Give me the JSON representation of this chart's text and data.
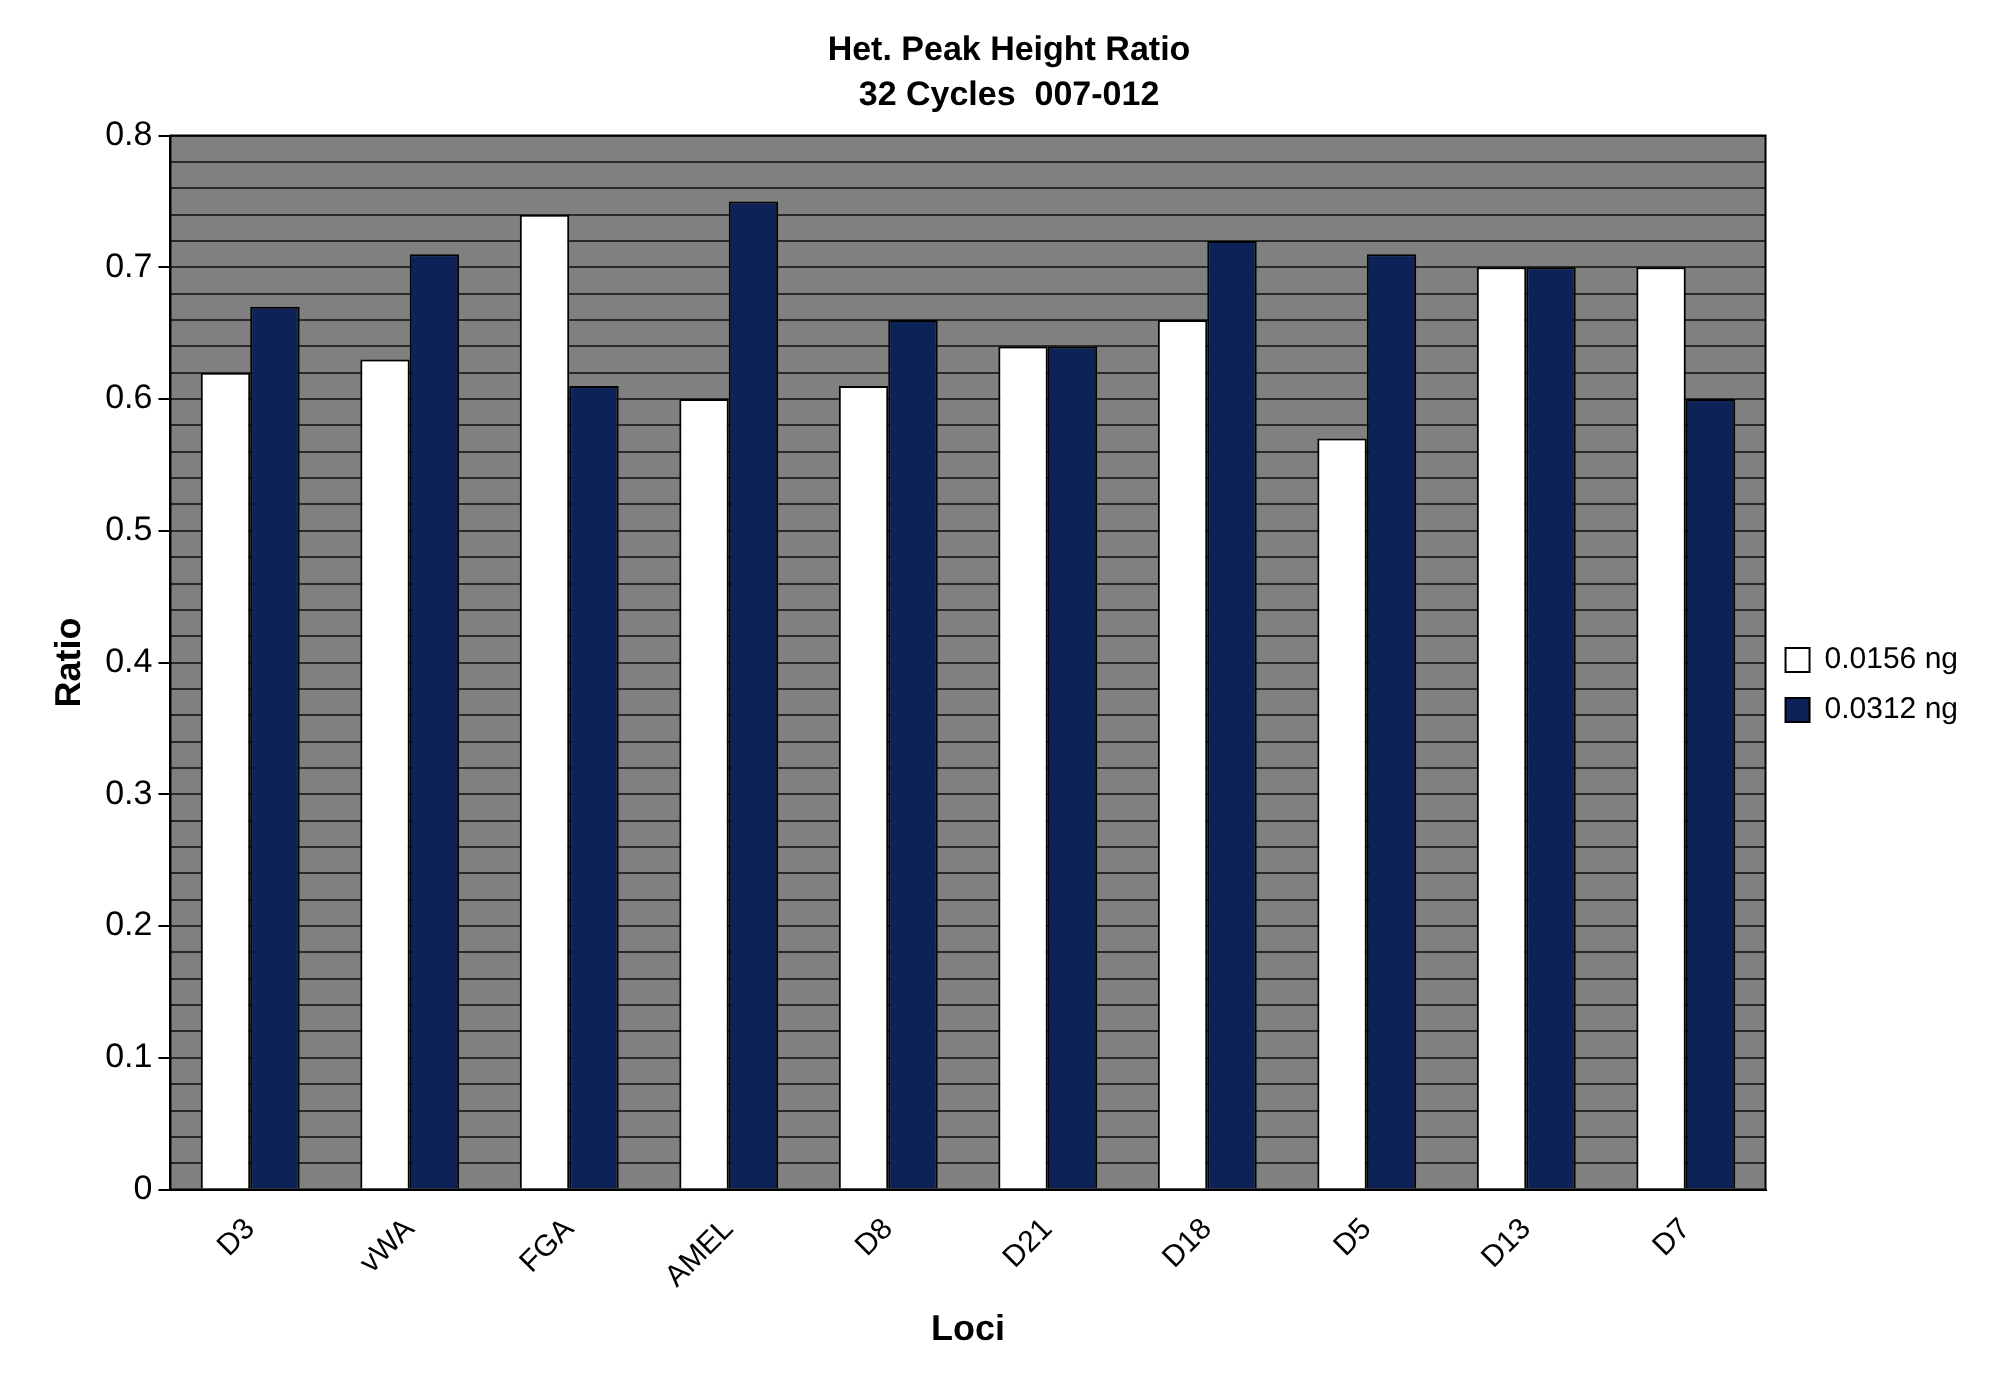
{
  "chart_data": {
    "type": "bar",
    "title": "Het. Peak Height Ratio",
    "subtitle": "32 Cycles  007-012",
    "xlabel": "Loci",
    "ylabel": "Ratio",
    "categories": [
      "D3",
      "vWA",
      "FGA",
      "AMEL",
      "D8",
      "D21",
      "D18",
      "D5",
      "D13",
      "D7"
    ],
    "series": [
      {
        "name": "0.0156 ng",
        "color": "#ffffff",
        "values": [
          0.62,
          0.63,
          0.74,
          0.6,
          0.61,
          0.64,
          0.66,
          0.57,
          0.7,
          0.7
        ]
      },
      {
        "name": "0.0312 ng",
        "color": "#0d2357",
        "values": [
          0.67,
          0.71,
          0.61,
          0.75,
          0.66,
          0.64,
          0.72,
          0.71,
          0.7,
          0.6
        ]
      }
    ],
    "ylim": [
      0,
      0.8
    ],
    "yticks": [
      0,
      {
        "value": 0.02,
        "label": null
      },
      {
        "value": 0.04,
        "label": null
      },
      {
        "value": 0.06,
        "label": null
      },
      {
        "value": 0.08,
        "label": null
      },
      0.1,
      {
        "value": 0.12,
        "label": null
      },
      {
        "value": 0.14,
        "label": null
      },
      {
        "value": 0.16,
        "label": null
      },
      {
        "value": 0.18,
        "label": null
      },
      0.2,
      {
        "value": 0.22,
        "label": null
      },
      {
        "value": 0.24,
        "label": null
      },
      {
        "value": 0.26,
        "label": null
      },
      {
        "value": 0.28,
        "label": null
      },
      0.3,
      {
        "value": 0.32,
        "label": null
      },
      {
        "value": 0.34,
        "label": null
      },
      {
        "value": 0.36,
        "label": null
      },
      {
        "value": 0.38,
        "label": null
      },
      0.4,
      {
        "value": 0.42,
        "label": null
      },
      {
        "value": 0.44,
        "label": null
      },
      {
        "value": 0.46,
        "label": null
      },
      {
        "value": 0.48,
        "label": null
      },
      0.5,
      {
        "value": 0.52,
        "label": null
      },
      {
        "value": 0.54,
        "label": null
      },
      {
        "value": 0.56,
        "label": null
      },
      {
        "value": 0.58,
        "label": null
      },
      0.6,
      {
        "value": 0.62,
        "label": null
      },
      {
        "value": 0.64,
        "label": null
      },
      {
        "value": 0.66,
        "label": null
      },
      {
        "value": 0.68,
        "label": null
      },
      0.7,
      {
        "value": 0.72,
        "label": null
      },
      {
        "value": 0.74,
        "label": null
      },
      {
        "value": 0.76,
        "label": null
      },
      {
        "value": 0.78,
        "label": null
      },
      0.8
    ],
    "grid": "y",
    "legend": "right"
  }
}
